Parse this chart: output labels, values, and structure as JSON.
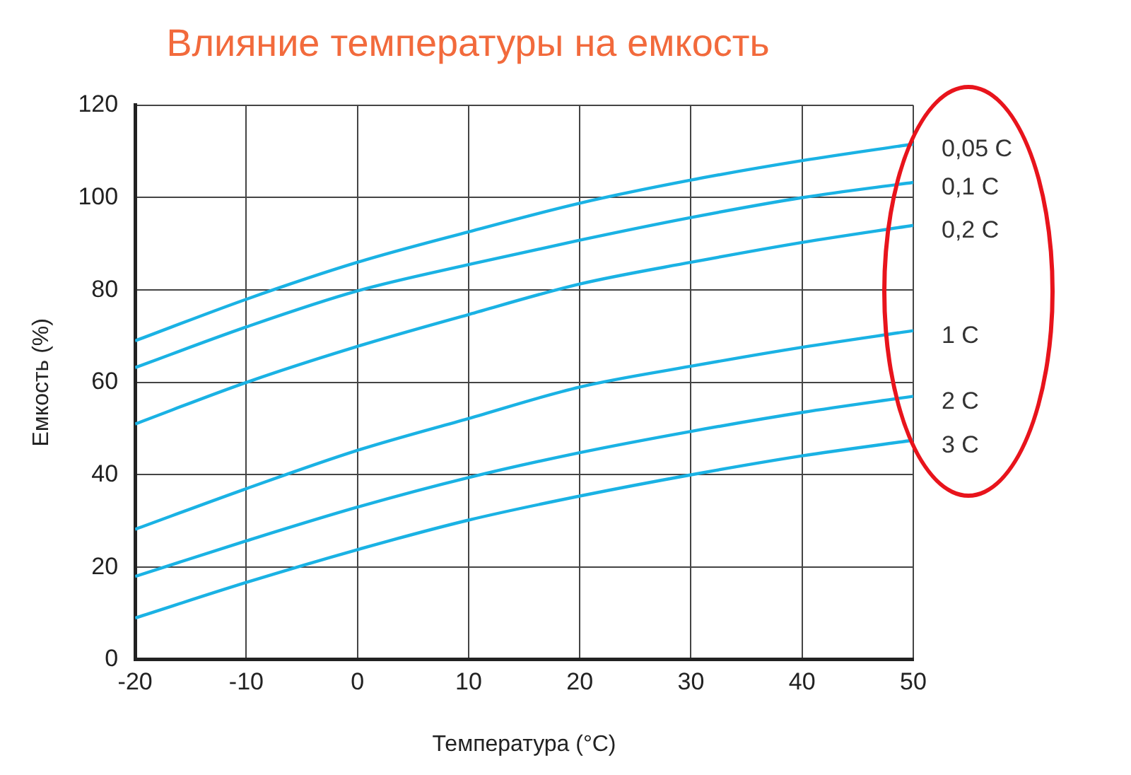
{
  "chart_data": {
    "type": "line",
    "title": "Влияние температуры на емкость",
    "xlabel": "Температура (°C)",
    "ylabel": "Емкость (%)",
    "x": [
      -20,
      -10,
      0,
      10,
      20,
      30,
      40,
      50
    ],
    "series": [
      {
        "name": "0,05 C",
        "color": "#1ab2e4",
        "values": [
          69,
          78,
          86,
          92.6,
          98.8,
          103.8,
          108,
          111.6
        ]
      },
      {
        "name": "0,1 C",
        "color": "#1ab2e4",
        "values": [
          63.2,
          72,
          79.8,
          85.5,
          90.8,
          95.7,
          100,
          103.3
        ]
      },
      {
        "name": "0,2 C",
        "color": "#1ab2e4",
        "values": [
          51,
          60,
          67.8,
          74.7,
          81.3,
          86,
          90.3,
          94
        ]
      },
      {
        "name": "1 C",
        "color": "#1ab2e4",
        "values": [
          28.2,
          37,
          45.3,
          52.2,
          59,
          63.5,
          67.6,
          71.2
        ]
      },
      {
        "name": "2 C",
        "color": "#1ab2e4",
        "values": [
          18,
          25.7,
          33,
          39.4,
          44.8,
          49.4,
          53.5,
          57
        ]
      },
      {
        "name": "3 C",
        "color": "#1ab2e4",
        "values": [
          9,
          16.7,
          23.8,
          30.2,
          35.4,
          40,
          44.1,
          47.5
        ]
      }
    ],
    "xlim": [
      -20,
      50
    ],
    "xticks": [
      -20,
      -10,
      0,
      10,
      20,
      30,
      40,
      50
    ],
    "ylim": [
      0,
      120
    ],
    "yticks": [
      0,
      20,
      40,
      60,
      80,
      100,
      120
    ],
    "grid": true,
    "legend": false,
    "marker": "none",
    "line_style": "solid"
  }
}
